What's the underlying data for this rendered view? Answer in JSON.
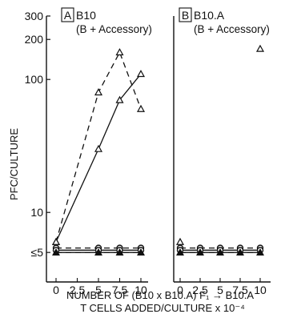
{
  "chart_data": [
    {
      "type": "line",
      "panel_letter": "A",
      "title": "B10",
      "subtitle": "(B + Accessory)",
      "ylabel": "PFC/CULTURE",
      "yscale": "log",
      "ylim": [
        3,
        300
      ],
      "y_ticks": [
        {
          "value": 300,
          "label": "300"
        },
        {
          "value": 200,
          "label": "200"
        },
        {
          "value": 100,
          "label": "100"
        },
        {
          "value": 10,
          "label": "10"
        },
        {
          "value": 5,
          "label": "≤5"
        }
      ],
      "xlim": [
        -0.5,
        10.5
      ],
      "x_ticks": [
        {
          "value": 0,
          "label": "0"
        },
        {
          "value": 2.5,
          "label": "2.5"
        },
        {
          "value": 5,
          "label": "5"
        },
        {
          "value": 7.5,
          "label": "7.5"
        },
        {
          "value": 10,
          "label": "10"
        }
      ],
      "series": [
        {
          "marker": "open-triangle",
          "dash": "dashed",
          "x": [
            0,
            5,
            7.5,
            10
          ],
          "y": [
            6,
            80,
            160,
            60
          ]
        },
        {
          "marker": "open-triangle",
          "dash": "solid",
          "x": [
            0,
            5,
            7.5,
            10
          ],
          "y": [
            6,
            30,
            70,
            110
          ]
        },
        {
          "marker": "open-circle",
          "dash": "dashed",
          "x": [
            0,
            5,
            7.5,
            10
          ],
          "y": [
            5.4,
            5.4,
            5.4,
            5.4
          ]
        },
        {
          "marker": "open-circle",
          "dash": "solid",
          "x": [
            0,
            5,
            7.5,
            10
          ],
          "y": [
            5.2,
            5.2,
            5.2,
            5.2
          ]
        },
        {
          "marker": "filled-triangle",
          "dash": "dashed",
          "x": [
            0,
            5,
            7.5,
            10
          ],
          "y": [
            5,
            5,
            5,
            5
          ]
        },
        {
          "marker": "filled-triangle",
          "dash": "solid",
          "x": [
            0,
            5,
            7.5,
            10
          ],
          "y": [
            5,
            5,
            5,
            5
          ]
        }
      ]
    },
    {
      "type": "line",
      "panel_letter": "B",
      "title": "B10.A",
      "subtitle": "(B + Accessory)",
      "yscale": "log",
      "ylim": [
        3,
        300
      ],
      "xlim": [
        -0.5,
        10.5
      ],
      "x_ticks": [
        {
          "value": 0,
          "label": "0"
        },
        {
          "value": 2.5,
          "label": "2.5"
        },
        {
          "value": 5,
          "label": "5"
        },
        {
          "value": 7.5,
          "label": "7.5"
        },
        {
          "value": 10,
          "label": "10"
        }
      ],
      "series": [
        {
          "marker": "open-triangle",
          "dash": "none",
          "x": [
            10
          ],
          "y": [
            170
          ]
        },
        {
          "marker": "open-triangle",
          "dash": "dashed",
          "x": [
            0
          ],
          "y": [
            6
          ]
        },
        {
          "marker": "open-circle",
          "dash": "dashed",
          "x": [
            0,
            2.5,
            5,
            7.5,
            10
          ],
          "y": [
            5.4,
            5.4,
            5.4,
            5.4,
            5.4
          ]
        },
        {
          "marker": "open-circle",
          "dash": "solid",
          "x": [
            0,
            2.5,
            5,
            7.5,
            10
          ],
          "y": [
            5.2,
            5.2,
            5.2,
            5.2,
            5.2
          ]
        },
        {
          "marker": "filled-triangle",
          "dash": "dashed",
          "x": [
            0,
            2.5,
            5,
            7.5,
            10
          ],
          "y": [
            5,
            5,
            5,
            5,
            5
          ]
        },
        {
          "marker": "filled-triangle",
          "dash": "solid",
          "x": [
            0,
            2.5,
            5,
            7.5,
            10
          ],
          "y": [
            5,
            5,
            5,
            5,
            5
          ]
        }
      ]
    }
  ],
  "xlabel_line1": "NUMBER OF (B10 x B10.A) F₁ → B10.A",
  "xlabel_line2": "T CELLS ADDED/CULTURE x 10⁻⁴"
}
